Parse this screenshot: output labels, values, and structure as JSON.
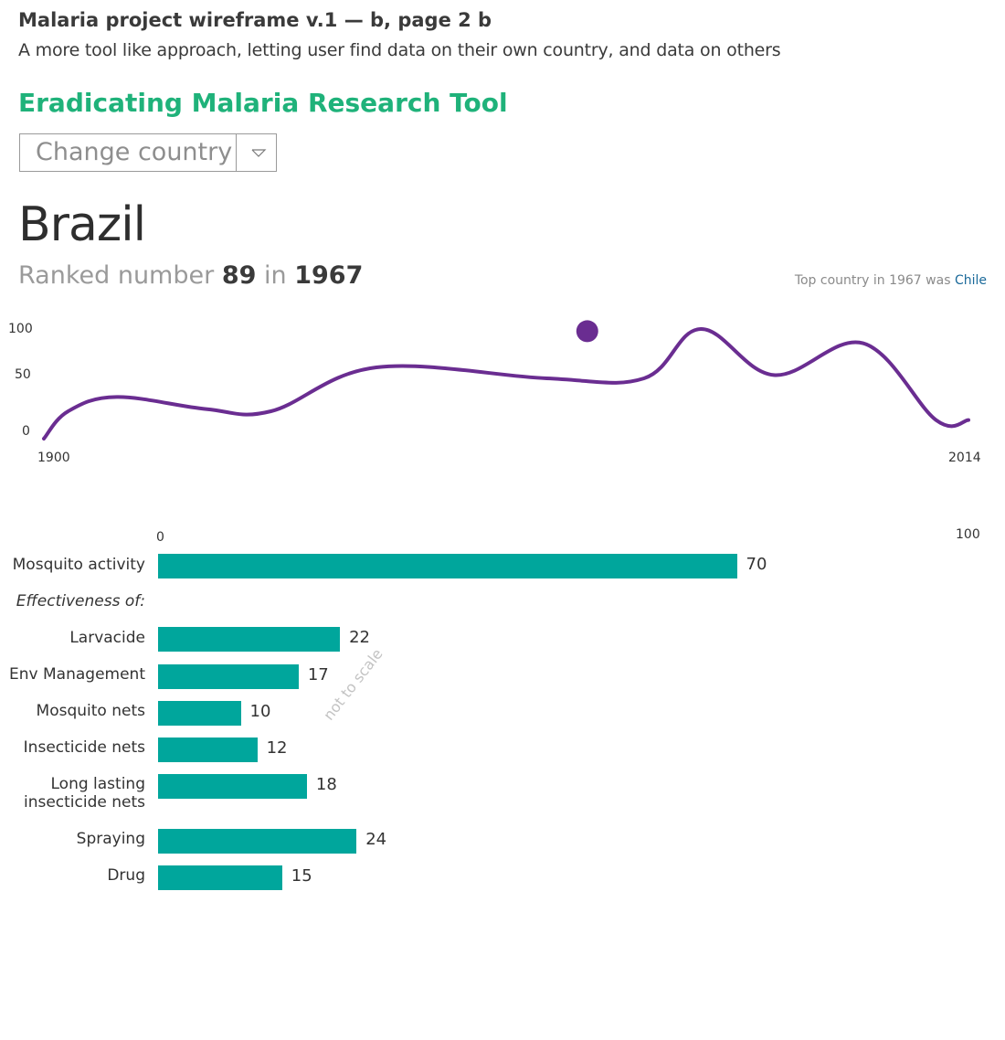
{
  "header": {
    "wireframe_title": "Malaria project wireframe v.1 — b, page 2 b",
    "wireframe_subtitle": "A more tool like approach, letting user find data on their own country, and data on others"
  },
  "tool": {
    "title": "Eradicating Malaria Research Tool",
    "country_select_label": "Change country"
  },
  "country": {
    "name": "Brazil",
    "rank_prefix": "Ranked number",
    "rank": "89",
    "rank_in": "in",
    "year": "1967",
    "top_country_text": "Top country in 1967 was",
    "top_country_name": "Chile"
  },
  "colors": {
    "accent_green": "#1fb27a",
    "line_purple": "#6a2d91",
    "bar_teal": "#00a69c",
    "link_blue": "#1b6a9a"
  },
  "icons": {
    "dropdown": "chevron-down-icon"
  },
  "line_chart": {
    "x_start_label": "1900",
    "x_end_label": "2014",
    "y_tick_labels": [
      "100",
      "50",
      "0"
    ]
  },
  "bar_chart": {
    "axis_min_label": "0",
    "axis_max_label": "100",
    "section_label": "Effectiveness of:",
    "watermark": "not to scale"
  },
  "chart_data": [
    {
      "type": "line",
      "x": [
        1900,
        1903,
        1909,
        1920,
        1928,
        1941,
        1962,
        1974,
        1981,
        1990,
        2001,
        2010,
        2014
      ],
      "values": [
        0,
        25,
        38,
        27,
        25,
        65,
        55,
        55,
        100,
        58,
        87,
        17,
        17
      ],
      "highlight": {
        "x": 1967,
        "value": 98
      },
      "xlim": [
        1900,
        2014
      ],
      "ylim": [
        0,
        100
      ],
      "yticks": [
        0,
        50,
        100
      ],
      "grid": false,
      "xlabel": "",
      "ylabel": "",
      "title": ""
    },
    {
      "type": "bar",
      "orientation": "horizontal",
      "categories": [
        "Mosquito activity",
        "Larvacide",
        "Env Management",
        "Mosquito nets",
        "Insecticide nets",
        "Long lasting insecticide nets",
        "Spraying",
        "Drug"
      ],
      "values": [
        70,
        22,
        17,
        10,
        12,
        18,
        24,
        15
      ],
      "xlim": [
        0,
        100
      ],
      "grid": false
    }
  ]
}
